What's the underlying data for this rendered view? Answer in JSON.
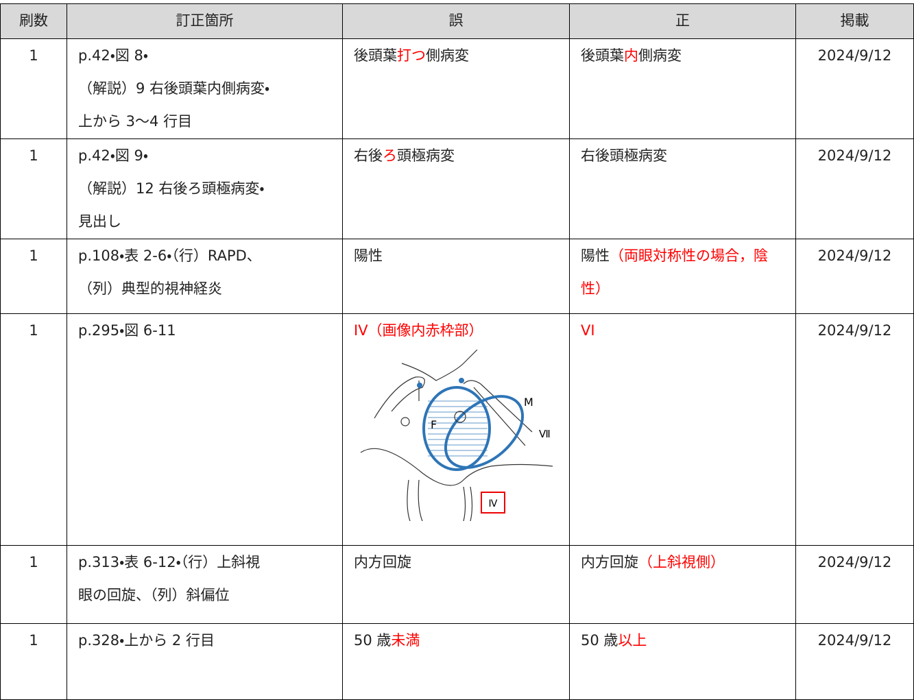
{
  "table": {
    "header": [
      "刷数",
      "訂正箇所",
      "誤",
      "正",
      "掲載"
    ],
    "rows": [
      {
        "printing": "1",
        "location": [
          "p.42・図 8・",
          "（解説）9 右後頭葉内側病変・",
          "上から 3～4 行目"
        ],
        "wrong": [
          {
            "text": "後頭葉"
          },
          {
            "text": "打つ",
            "red": true
          },
          {
            "text": "側病変"
          }
        ],
        "correct": [
          {
            "text": "後頭葉"
          },
          {
            "text": "内",
            "red": true
          },
          {
            "text": "側病変"
          }
        ],
        "date": "2024/9/12"
      },
      {
        "printing": "1",
        "location": [
          "p.42・図 9・",
          "（解説）12 右後ろ頭極病変・",
          "見出し"
        ],
        "wrong": [
          {
            "text": "右後"
          },
          {
            "text": "ろ",
            "red": true
          },
          {
            "text": "頭極病変"
          }
        ],
        "correct": [
          {
            "text": "右後頭極病変"
          }
        ],
        "date": "2024/9/12"
      },
      {
        "printing": "1",
        "location": [
          "p.108・表 2-6・（行）RAPD、",
          "（列）典型的視神経炎"
        ],
        "wrong": [
          {
            "text": "陽性"
          }
        ],
        "correct": [
          {
            "text": "陽性"
          },
          {
            "text": "（両眼対称性の場合，陰性）",
            "red": true
          }
        ],
        "date": "2024/9/12"
      },
      {
        "printing": "1",
        "location": [
          "p.295・図 6-11"
        ],
        "wrong": [
          {
            "text": "IV（画像内赤枠部）",
            "red": true
          }
        ],
        "correct": [
          {
            "text": "VI",
            "red": true
          }
        ],
        "figure": {
          "labels": [
            "M",
            "F",
            "Ⅶ",
            "Ⅳ"
          ]
        },
        "date": "2024/9/12"
      },
      {
        "printing": "1",
        "location": [
          "p.313・表 6-12・（行）上斜視",
          "眼の回旋、（列）斜偏位"
        ],
        "wrong": [
          {
            "text": "内方回旋"
          }
        ],
        "correct": [
          {
            "text": "内方回旋"
          },
          {
            "text": "（上斜視側）",
            "red": true
          }
        ],
        "date": "2024/9/12"
      },
      {
        "printing": "1",
        "location": [
          "p.328・上から 2 行目"
        ],
        "wrong": [
          {
            "text": "50 歳"
          },
          {
            "text": "未満",
            "red": true
          }
        ],
        "correct": [
          {
            "text": "50 歳"
          },
          {
            "text": "以上",
            "red": true
          }
        ],
        "date": "2024/9/12"
      }
    ]
  }
}
